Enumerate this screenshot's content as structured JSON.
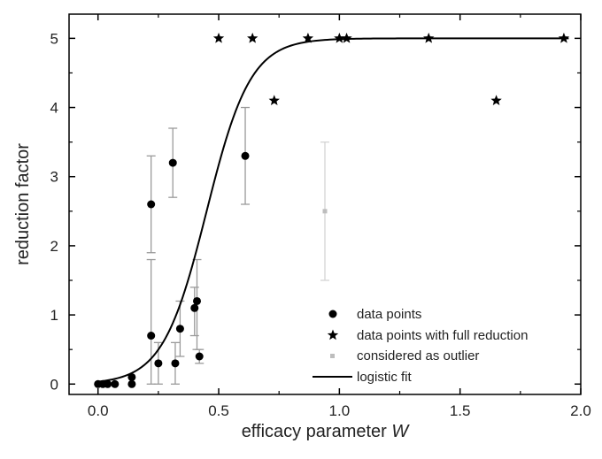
{
  "chart_data": {
    "type": "scatter",
    "xlabel": "efficacy parameter",
    "xlabel_var": "W",
    "ylabel": "reduction factor",
    "xlim": [
      -0.12,
      2.0
    ],
    "ylim": [
      -0.15,
      5.35
    ],
    "x_ticks": [
      0.0,
      0.5,
      1.0,
      1.5,
      2.0
    ],
    "x_tick_labels": [
      "0.0",
      "0.5",
      "1.0",
      "1.5",
      "2.0"
    ],
    "y_ticks": [
      0,
      1,
      2,
      3,
      4,
      5
    ],
    "y_tick_labels": [
      "0",
      "1",
      "2",
      "3",
      "4",
      "5"
    ],
    "grid": false,
    "legend_position": "bottom-right",
    "colors": {
      "points": "#000000",
      "outlier": "#bdbdbd",
      "errorbar": "#9a9a9a",
      "fit": "#000000"
    },
    "series": [
      {
        "name": "data points",
        "marker": "circle",
        "points": [
          {
            "x": 0.0,
            "y": 0.0
          },
          {
            "x": 0.02,
            "y": 0.0
          },
          {
            "x": 0.04,
            "y": 0.0
          },
          {
            "x": 0.07,
            "y": 0.0
          },
          {
            "x": 0.14,
            "y": 0.0
          },
          {
            "x": 0.14,
            "y": 0.1
          },
          {
            "x": 0.22,
            "y": 2.6,
            "err_low": 1.9,
            "err_high": 3.3
          },
          {
            "x": 0.22,
            "y": 0.7,
            "err_low": 0.0,
            "err_high": 1.8
          },
          {
            "x": 0.25,
            "y": 0.3,
            "err_low": 0.0,
            "err_high": 0.6
          },
          {
            "x": 0.31,
            "y": 3.2,
            "err_low": 2.7,
            "err_high": 3.7
          },
          {
            "x": 0.32,
            "y": 0.3,
            "err_low": 0.0,
            "err_high": 0.6
          },
          {
            "x": 0.34,
            "y": 0.8,
            "err_low": 0.4,
            "err_high": 1.2
          },
          {
            "x": 0.4,
            "y": 1.1,
            "err_low": 0.7,
            "err_high": 1.4
          },
          {
            "x": 0.41,
            "y": 1.2,
            "err_low": 0.5,
            "err_high": 1.8
          },
          {
            "x": 0.42,
            "y": 0.4,
            "err_low": 0.3,
            "err_high": 0.5
          },
          {
            "x": 0.61,
            "y": 3.3,
            "err_low": 2.6,
            "err_high": 4.0
          }
        ]
      },
      {
        "name": "data points with full reduction",
        "marker": "star",
        "points": [
          {
            "x": 0.5,
            "y": 5.0
          },
          {
            "x": 0.64,
            "y": 5.0
          },
          {
            "x": 0.73,
            "y": 4.1
          },
          {
            "x": 0.87,
            "y": 5.0
          },
          {
            "x": 1.0,
            "y": 5.0
          },
          {
            "x": 1.03,
            "y": 5.0
          },
          {
            "x": 1.37,
            "y": 5.0
          },
          {
            "x": 1.65,
            "y": 4.1
          },
          {
            "x": 1.93,
            "y": 5.0
          }
        ]
      },
      {
        "name": "considered as outlier",
        "marker": "square",
        "points": [
          {
            "x": 0.94,
            "y": 2.5,
            "err_low": 1.5,
            "err_high": 3.5
          }
        ]
      },
      {
        "name": "logistic fit",
        "marker": "line",
        "function": "logistic",
        "params": {
          "max": 5.0,
          "x0": 0.45,
          "k": 11
        },
        "x_range": [
          0.0,
          1.95
        ]
      }
    ]
  }
}
